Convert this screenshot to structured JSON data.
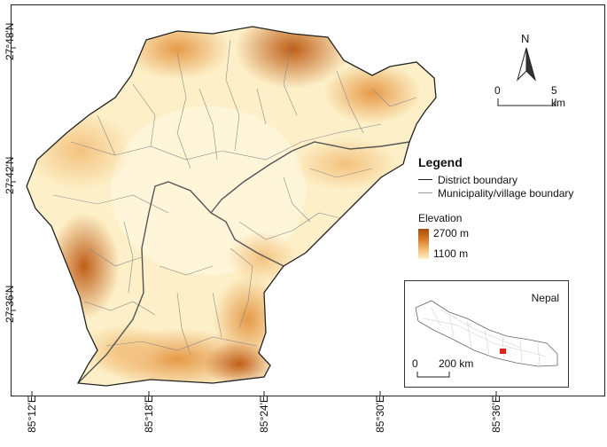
{
  "map": {
    "lat_labels": [
      "27°48'N",
      "27°42'N",
      "27°36'N"
    ],
    "lon_labels": [
      "85°12'E",
      "85°18'E",
      "85°24'E",
      "85°30'E",
      "85°36'E"
    ]
  },
  "north_arrow": {
    "label": "N"
  },
  "scale_bar": {
    "start": "0",
    "end": "5 km"
  },
  "legend": {
    "title": "Legend",
    "district_label": "District boundary",
    "municipality_label": "Municipality/village boundary",
    "elevation_title": "Elevation",
    "elevation_high": "2700 m",
    "elevation_low": "1100 m"
  },
  "inset": {
    "title": "Nepal",
    "scale_start": "0",
    "scale_end": "200 km"
  },
  "colors": {
    "low_elevation": "#fdf0c8",
    "high_elevation": "#a84e12",
    "highlight": "#e0221a"
  }
}
